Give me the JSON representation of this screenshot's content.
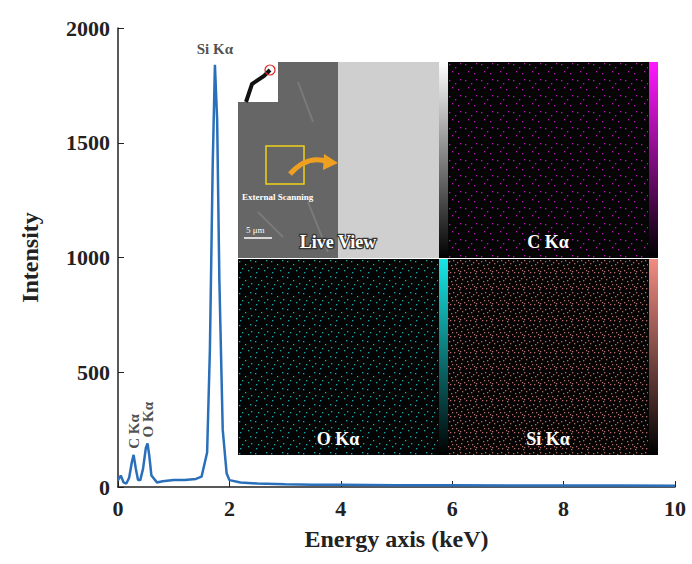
{
  "chart_data": {
    "type": "line",
    "x_label": "Energy axis (keV)",
    "y_label": "Intensity",
    "x": [
      0,
      0.05,
      0.1,
      0.15,
      0.2,
      0.25,
      0.28,
      0.32,
      0.36,
      0.4,
      0.45,
      0.5,
      0.53,
      0.56,
      0.6,
      0.7,
      0.8,
      1.0,
      1.2,
      1.4,
      1.5,
      1.6,
      1.65,
      1.7,
      1.74,
      1.78,
      1.82,
      1.88,
      1.95,
      2.0,
      2.2,
      2.5,
      3,
      3.5,
      4,
      5,
      6,
      7,
      8,
      9,
      10
    ],
    "values": [
      30,
      50,
      20,
      15,
      40,
      110,
      140,
      80,
      30,
      30,
      80,
      170,
      190,
      140,
      50,
      20,
      25,
      30,
      30,
      35,
      45,
      150,
      600,
      1400,
      1840,
      1600,
      900,
      250,
      60,
      30,
      20,
      15,
      12,
      10,
      10,
      8,
      8,
      7,
      6,
      6,
      5
    ],
    "color": "#2a6fba",
    "xlim": [
      0,
      10
    ],
    "xticks": [
      0,
      2,
      4,
      6,
      8,
      10
    ],
    "ylim": [
      0,
      2000
    ],
    "yticks": [
      0,
      500,
      1000,
      1500,
      2000
    ],
    "grid": false,
    "annotations": [
      {
        "text": "C Kα",
        "x": 0.28,
        "y": 140
      },
      {
        "text": "O Kα",
        "x": 0.53,
        "y": 190
      },
      {
        "text": "Si Kα",
        "x": 1.74,
        "y": 1840
      }
    ]
  },
  "inset": {
    "panels": [
      {
        "label": "Live View"
      },
      {
        "label": "C Kα",
        "color": "#ff1aff"
      },
      {
        "label": "O Kα",
        "color": "#19e6e6"
      },
      {
        "label": "Si Kα",
        "color": "#f28c82"
      }
    ],
    "callout": "External Scanning",
    "scale_bar": "5 μm"
  }
}
